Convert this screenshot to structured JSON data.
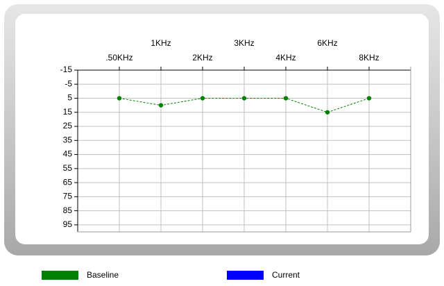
{
  "chart_data": {
    "type": "line",
    "categories": [
      ".50KHz",
      "1KHz",
      "2KHz",
      "3KHz",
      "4KHz",
      "6KHz",
      "8KHz"
    ],
    "series": [
      {
        "name": "Baseline",
        "color": "#008000",
        "values": [
          5,
          10,
          5,
          5,
          5,
          15,
          5
        ]
      },
      {
        "name": "Current",
        "color": "#0000ff",
        "values": [
          null,
          null,
          null,
          null,
          null,
          null,
          null
        ]
      }
    ],
    "ylim": [
      -15,
      100
    ],
    "y_inverted": true,
    "yticks": [
      -15,
      -5,
      5,
      15,
      25,
      35,
      45,
      55,
      65,
      75,
      85,
      95
    ],
    "grid": true,
    "legend": "bottom"
  }
}
